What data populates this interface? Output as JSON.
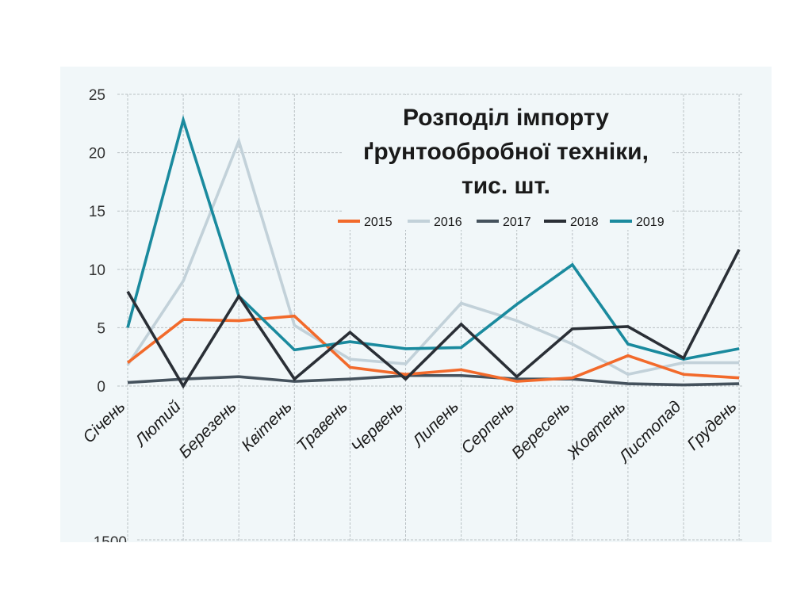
{
  "chart_data": {
    "type": "line",
    "title_lines": [
      "Розподіл імпорту",
      "ґрунтообробної техніки,",
      "тис. шт."
    ],
    "categories": [
      "Січень",
      "Лютий",
      "Березень",
      "Квітень",
      "Травень",
      "Червень",
      "Липень",
      "Серпень",
      "Вересень",
      "Жовтень",
      "Листопад",
      "Грудень"
    ],
    "ylim": [
      0,
      25
    ],
    "yticks": [
      "0",
      "5",
      "10",
      "15",
      "20",
      "25"
    ],
    "grid": true,
    "legend_position": "top-right",
    "series": [
      {
        "name": "2015",
        "color": "#f26a2b",
        "values": [
          2.0,
          5.7,
          5.6,
          6.0,
          1.6,
          1.0,
          1.4,
          0.4,
          0.7,
          2.6,
          1.0,
          0.7
        ]
      },
      {
        "name": "2016",
        "color": "#c2d1d9",
        "values": [
          1.8,
          9.0,
          21.0,
          5.2,
          2.3,
          1.9,
          7.1,
          5.6,
          3.6,
          1.0,
          2.0,
          2.0
        ]
      },
      {
        "name": "2017",
        "color": "#45525d",
        "values": [
          0.3,
          0.6,
          0.8,
          0.4,
          0.6,
          0.9,
          0.9,
          0.6,
          0.6,
          0.2,
          0.1,
          0.2
        ]
      },
      {
        "name": "2018",
        "color": "#2a2f36",
        "values": [
          8.1,
          0.0,
          7.7,
          0.6,
          4.6,
          0.6,
          5.3,
          0.8,
          4.9,
          5.1,
          2.4,
          11.7
        ]
      },
      {
        "name": "2019",
        "color": "#1a8a9e",
        "values": [
          5.0,
          22.8,
          7.7,
          3.1,
          3.8,
          3.2,
          3.3,
          7.0,
          10.4,
          3.6,
          2.3,
          3.2
        ]
      }
    ],
    "second_chart_top_tick": "1500"
  }
}
